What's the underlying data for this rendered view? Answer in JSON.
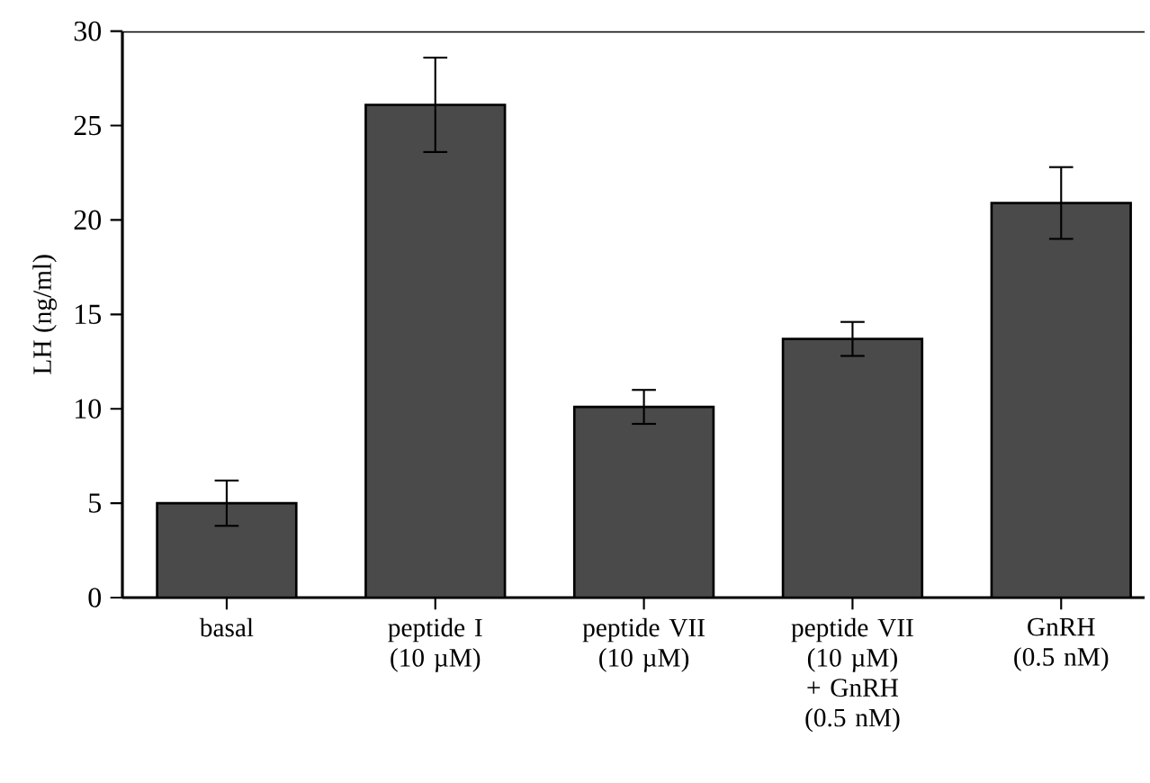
{
  "chart_data": {
    "type": "bar",
    "ylabel": "LH (ng/ml)",
    "categories": [
      "basal",
      "peptide I (10 µM)",
      "peptide VII (10 µM)",
      "peptide VII (10 µM) + GnRH (0.5 nM)",
      "GnRH (0.5 nM)"
    ],
    "values": [
      5.0,
      26.1,
      10.1,
      13.7,
      20.9
    ],
    "errors": [
      1.2,
      2.5,
      0.9,
      0.9,
      1.9
    ],
    "color": "#4a4a4a",
    "ylim": [
      0,
      30
    ],
    "yticks": [
      0,
      5,
      10,
      15,
      20,
      25,
      30
    ],
    "grid": false
  }
}
